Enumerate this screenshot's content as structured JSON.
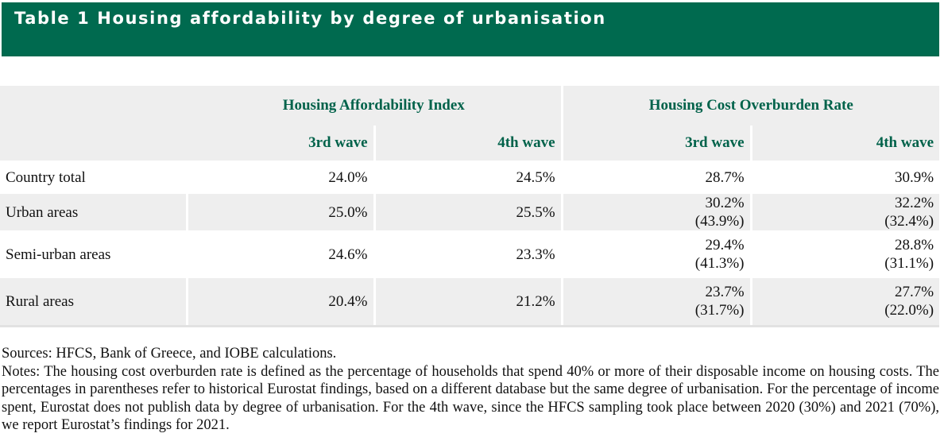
{
  "title": "Table 1 Housing affordability by degree of urbanisation",
  "table": {
    "groups": [
      "Housing Affordability Index",
      "Housing Cost Overburden Rate"
    ],
    "waves": [
      "3rd wave",
      "4th wave",
      "3rd wave",
      "4th wave"
    ],
    "rows": [
      {
        "label": "Country total",
        "hai_3rd": "24.0%",
        "hai_4th": "24.5%",
        "hcor_3rd": "28.7%",
        "hcor_3rd_eurostat": "",
        "hcor_4th": "30.9%",
        "hcor_4th_eurostat": ""
      },
      {
        "label": "Urban areas",
        "hai_3rd": "25.0%",
        "hai_4th": "25.5%",
        "hcor_3rd": "30.2%",
        "hcor_3rd_eurostat": "(43.9%)",
        "hcor_4th": "32.2%",
        "hcor_4th_eurostat": "(32.4%)"
      },
      {
        "label": "Semi-urban areas",
        "hai_3rd": "24.6%",
        "hai_4th": "23.3%",
        "hcor_3rd": "29.4%",
        "hcor_3rd_eurostat": "(41.3%)",
        "hcor_4th": "28.8%",
        "hcor_4th_eurostat": "(31.1%)"
      },
      {
        "label": "Rural areas",
        "hai_3rd": "20.4%",
        "hai_4th": "21.2%",
        "hcor_3rd": "23.7%",
        "hcor_3rd_eurostat": "(31.7%)",
        "hcor_4th": "27.7%",
        "hcor_4th_eurostat": "(22.0%)"
      }
    ]
  },
  "sources": "Sources: HFCS, Bank of Greece, and IOBE calculations.",
  "notes": "Notes: The housing cost overburden rate is defined as the percentage of households that spend 40% or more of their disposable income on housing costs. The percentages in parentheses refer to historical Eurostat findings, based on a different database but the same degree of urbanisation. For the percentage of income spent, Eurostat does not publish data by degree of urbanisation. For the 4th wave, since the HFCS sampling took place between 2020 (30%) and 2021 (70%), we report Eurostat’s findings for 2021.",
  "colors": {
    "title_bar": "#006a4f",
    "header_text": "#00624a",
    "shade": "#eeeeee"
  }
}
